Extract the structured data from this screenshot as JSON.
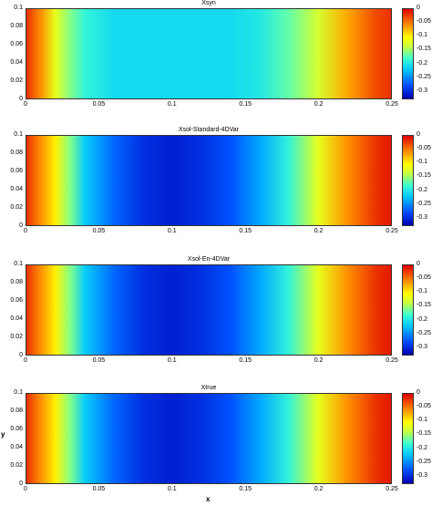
{
  "chart_data": [
    {
      "type": "heatmap",
      "title": "Xsyn",
      "xlim": [
        0,
        0.25
      ],
      "ylim": [
        0,
        0.1
      ],
      "x_ticks": [
        "0",
        "0.05",
        "0.1",
        "0.15",
        "0.2",
        "0.25"
      ],
      "y_ticks": [
        "0",
        "0.02",
        "0.04",
        "0.06",
        "0.08",
        "0.1"
      ],
      "colorbar_ticks": [
        "0",
        "-0.05",
        "-0.1",
        "-0.15",
        "-0.2",
        "-0.25",
        "-0.3"
      ],
      "clim": [
        -0.33,
        0
      ],
      "x_profile": [
        0,
        0.01,
        0.02,
        0.03,
        0.04,
        0.06,
        0.08,
        0.1,
        0.12,
        0.14,
        0.16,
        0.18,
        0.2,
        0.22,
        0.24,
        0.25
      ],
      "values": [
        -0.02,
        -0.06,
        -0.12,
        -0.16,
        -0.19,
        -0.21,
        -0.21,
        -0.21,
        -0.21,
        -0.21,
        -0.2,
        -0.17,
        -0.13,
        -0.07,
        -0.03,
        -0.02
      ]
    },
    {
      "type": "heatmap",
      "title": "Xsol-Standard-4DVar",
      "xlim": [
        0,
        0.25
      ],
      "ylim": [
        0,
        0.1
      ],
      "x_ticks": [
        "0",
        "0.05",
        "0.1",
        "0.15",
        "0.2",
        "0.25"
      ],
      "y_ticks": [
        "0",
        "0.02",
        "0.04",
        "0.06",
        "0.08",
        "0.1"
      ],
      "colorbar_ticks": [
        "0",
        "-0.05",
        "-0.1",
        "-0.15",
        "-0.2",
        "-0.25",
        "-0.3"
      ],
      "clim": [
        -0.33,
        0
      ],
      "x_profile": [
        0,
        0.01,
        0.02,
        0.03,
        0.04,
        0.06,
        0.08,
        0.1,
        0.12,
        0.14,
        0.16,
        0.18,
        0.2,
        0.22,
        0.24,
        0.25
      ],
      "values": [
        -0.02,
        -0.06,
        -0.1,
        -0.16,
        -0.22,
        -0.27,
        -0.3,
        -0.31,
        -0.3,
        -0.28,
        -0.24,
        -0.19,
        -0.12,
        -0.06,
        -0.02,
        -0.01
      ]
    },
    {
      "type": "heatmap",
      "title": "Xsol-En-4DVar",
      "xlim": [
        0,
        0.25
      ],
      "ylim": [
        0,
        0.1
      ],
      "x_ticks": [
        "0",
        "0.05",
        "0.1",
        "0.15",
        "0.2",
        "0.25"
      ],
      "y_ticks": [
        "0",
        "0.02",
        "0.04",
        "0.06",
        "0.08",
        "0.1"
      ],
      "colorbar_ticks": [
        "0",
        "-0.05",
        "-0.1",
        "-0.15",
        "-0.2",
        "-0.25",
        "-0.3"
      ],
      "clim": [
        -0.33,
        0
      ],
      "x_profile": [
        0,
        0.01,
        0.02,
        0.03,
        0.04,
        0.06,
        0.08,
        0.1,
        0.12,
        0.14,
        0.16,
        0.18,
        0.2,
        0.22,
        0.24,
        0.25
      ],
      "values": [
        -0.02,
        -0.06,
        -0.1,
        -0.16,
        -0.22,
        -0.27,
        -0.3,
        -0.31,
        -0.3,
        -0.28,
        -0.24,
        -0.19,
        -0.12,
        -0.06,
        -0.02,
        -0.01
      ]
    },
    {
      "type": "heatmap",
      "title": "Xtrue",
      "xlabel": "x",
      "ylabel": "y",
      "xlim": [
        0,
        0.25
      ],
      "ylim": [
        0,
        0.1
      ],
      "x_ticks": [
        "0",
        "0.05",
        "0.1",
        "0.15",
        "0.2",
        "0.25"
      ],
      "y_ticks": [
        "0",
        "0.02",
        "0.04",
        "0.06",
        "0.08",
        "0.1"
      ],
      "colorbar_ticks": [
        "0",
        "-0.05",
        "-0.1",
        "-0.15",
        "-0.2",
        "-0.25",
        "-0.3"
      ],
      "clim": [
        -0.33,
        0
      ],
      "x_profile": [
        0,
        0.01,
        0.02,
        0.03,
        0.04,
        0.06,
        0.08,
        0.1,
        0.12,
        0.14,
        0.16,
        0.18,
        0.2,
        0.22,
        0.24,
        0.25
      ],
      "values": [
        -0.02,
        -0.06,
        -0.1,
        -0.16,
        -0.22,
        -0.27,
        -0.3,
        -0.31,
        -0.3,
        -0.28,
        -0.24,
        -0.19,
        -0.12,
        -0.06,
        -0.02,
        -0.01
      ]
    }
  ]
}
